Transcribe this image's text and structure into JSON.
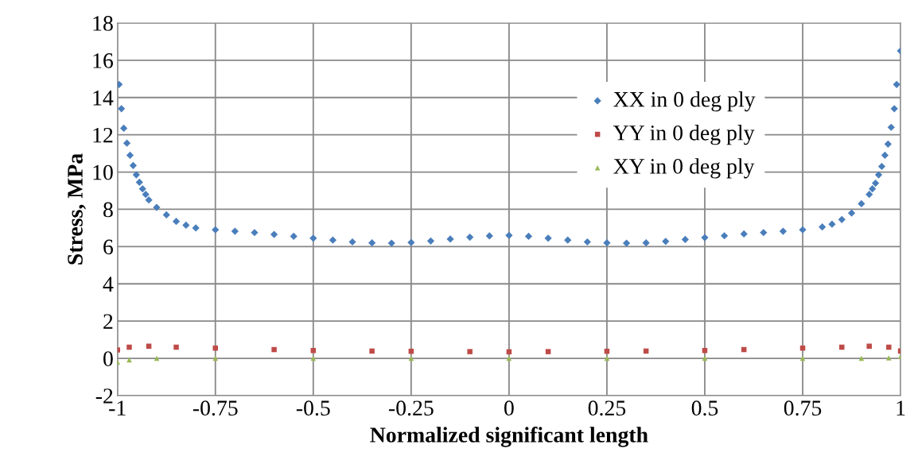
{
  "chart_data": {
    "type": "scatter",
    "xlabel": "Normalized significant length",
    "ylabel": "Stress, MPa",
    "xlim": [
      -1,
      1
    ],
    "xticks": [
      {
        "value": -1,
        "label": "-1"
      },
      {
        "value": -0.75,
        "label": "-0.75"
      },
      {
        "value": -0.5,
        "label": "-0.5"
      },
      {
        "value": -0.25,
        "label": "-0.25"
      },
      0,
      0.25,
      0.5,
      0.75,
      1
    ],
    "ylim": [
      -2,
      18
    ],
    "yticks": [
      {
        "value": -2,
        "label": "-2"
      },
      0,
      2,
      4,
      6,
      8,
      10,
      12,
      14,
      16,
      18
    ],
    "grid": true,
    "legend": "right",
    "series": [
      {
        "name": "XX in 0 deg ply",
        "color": "#4a7ebb",
        "marker": "diamond",
        "x": [
          -0.996,
          -0.99,
          -0.984,
          -0.976,
          -0.968,
          -0.96,
          -0.952,
          -0.944,
          -0.936,
          -0.928,
          -0.92,
          -0.9,
          -0.875,
          -0.85,
          -0.825,
          -0.8,
          -0.75,
          -0.7,
          -0.65,
          -0.6,
          -0.55,
          -0.5,
          -0.45,
          -0.4,
          -0.35,
          -0.3,
          -0.25,
          -0.2,
          -0.15,
          -0.1,
          -0.05,
          0,
          0.05,
          0.1,
          0.15,
          0.2,
          0.25,
          0.3,
          0.35,
          0.4,
          0.45,
          0.5,
          0.55,
          0.6,
          0.65,
          0.7,
          0.75,
          0.8,
          0.825,
          0.85,
          0.875,
          0.9,
          0.92,
          0.928,
          0.936,
          0.944,
          0.952,
          0.96,
          0.968,
          0.976,
          0.984,
          0.99,
          1
        ],
        "values": [
          14.7,
          13.4,
          12.35,
          11.55,
          10.9,
          10.35,
          9.85,
          9.45,
          9.1,
          8.8,
          8.5,
          8.1,
          7.7,
          7.35,
          7.15,
          7.0,
          6.9,
          6.82,
          6.75,
          6.65,
          6.55,
          6.45,
          6.35,
          6.25,
          6.2,
          6.18,
          6.22,
          6.3,
          6.4,
          6.5,
          6.57,
          6.6,
          6.55,
          6.45,
          6.35,
          6.25,
          6.2,
          6.18,
          6.2,
          6.28,
          6.38,
          6.48,
          6.58,
          6.68,
          6.75,
          6.82,
          6.9,
          7.05,
          7.2,
          7.45,
          7.8,
          8.3,
          8.8,
          9.1,
          9.4,
          9.85,
          10.3,
          10.9,
          11.5,
          12.4,
          13.4,
          14.7,
          16.5
        ]
      },
      {
        "name": "YY in 0 deg ply",
        "color": "#be4b48",
        "marker": "square",
        "x": [
          -1,
          -0.97,
          -0.92,
          -0.85,
          -0.75,
          -0.6,
          -0.5,
          -0.35,
          -0.25,
          -0.1,
          0,
          0.1,
          0.25,
          0.35,
          0.5,
          0.6,
          0.75,
          0.85,
          0.92,
          0.97,
          1
        ],
        "values": [
          0.45,
          0.6,
          0.65,
          0.6,
          0.55,
          0.47,
          0.42,
          0.39,
          0.38,
          0.36,
          0.35,
          0.36,
          0.38,
          0.39,
          0.42,
          0.47,
          0.55,
          0.6,
          0.65,
          0.6,
          0.4
        ]
      },
      {
        "name": "XY in 0 deg ply",
        "color": "#98b954",
        "marker": "triangle",
        "x": [
          -1,
          -0.97,
          -0.9,
          -0.75,
          -0.5,
          -0.25,
          0,
          0.25,
          0.5,
          0.75,
          0.9,
          0.97,
          1
        ],
        "values": [
          -0.2,
          -0.08,
          0.0,
          0.0,
          0.0,
          0.0,
          0.0,
          0.0,
          0.0,
          0.0,
          0.0,
          0.02,
          0.1
        ]
      }
    ]
  }
}
